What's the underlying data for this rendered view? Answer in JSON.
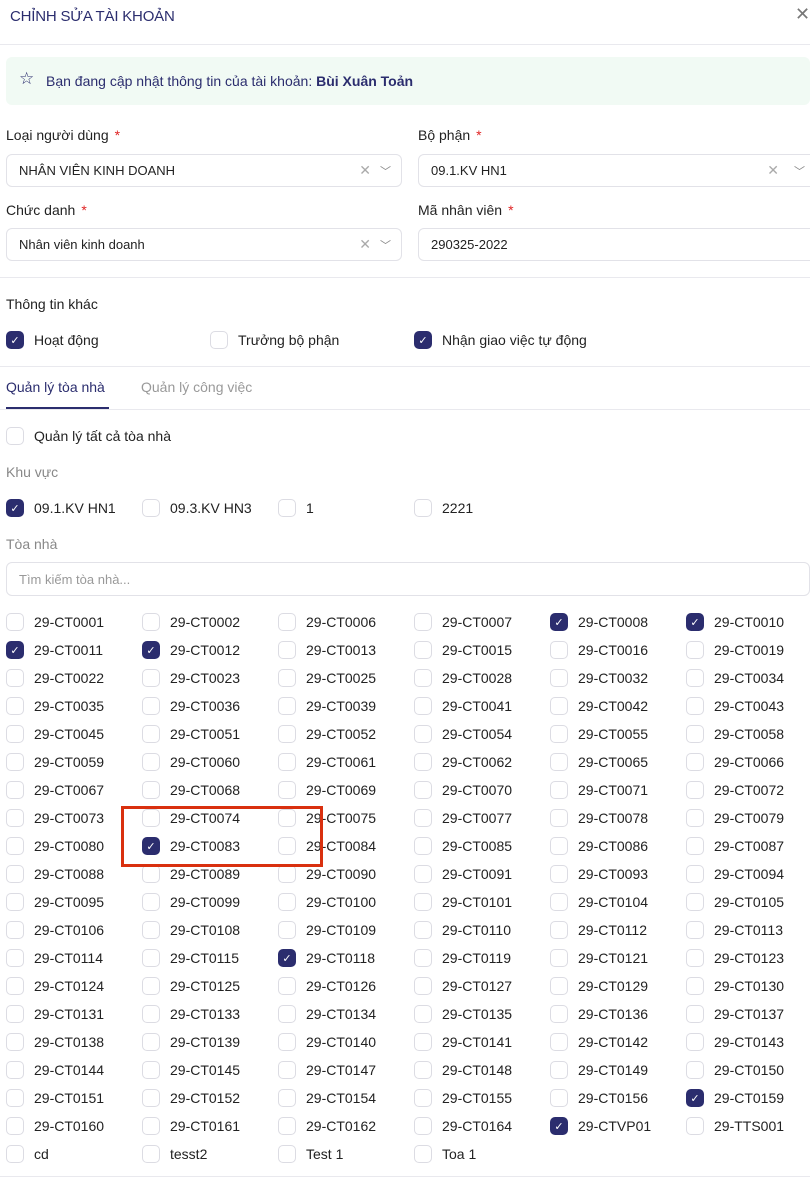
{
  "header": {
    "title": "CHỈNH SỬA TÀI KHOẢN",
    "close": "✕"
  },
  "banner": {
    "prefix": "Bạn đang cập nhật thông tin của tài khoản: ",
    "name": "Bùi Xuân Toản",
    "icon": "star-icon"
  },
  "form": {
    "user_type": {
      "label": "Loại người dùng",
      "value": "NHÂN VIÊN KINH DOANH"
    },
    "department": {
      "label": "Bộ phận",
      "value": "09.1.KV HN1"
    },
    "position": {
      "label": "Chức danh",
      "value": "Nhân viên kinh doanh"
    },
    "employee_code": {
      "label": "Mã nhân viên",
      "value": "290325-2022"
    },
    "required": "*"
  },
  "other": {
    "title": "Thông tin khác",
    "options": [
      {
        "label": "Hoạt động",
        "checked": true
      },
      {
        "label": "Trưởng bộ phận",
        "checked": false
      },
      {
        "label": "Nhận giao việc tự động",
        "checked": true
      }
    ]
  },
  "tabs": [
    {
      "label": "Quản lý tòa nhà",
      "active": true
    },
    {
      "label": "Quản lý công việc",
      "active": false
    }
  ],
  "manage_all": {
    "label": "Quản lý tất cả tòa nhà",
    "checked": false
  },
  "region": {
    "title": "Khu vực",
    "items": [
      {
        "label": "09.1.KV HN1",
        "checked": true
      },
      {
        "label": "09.3.KV HN3",
        "checked": false
      },
      {
        "label": "1",
        "checked": false
      },
      {
        "label": "2221",
        "checked": false
      }
    ]
  },
  "buildings": {
    "title": "Tòa nhà",
    "search_placeholder": "Tìm kiếm tòa nhà...",
    "checked": [
      "29-CT0008",
      "29-CT0010",
      "29-CT0011",
      "29-CT0012",
      "29-CT0083",
      "29-CT0118",
      "29-CT0159",
      "29-CTVP01"
    ],
    "items": [
      "29-CT0001",
      "29-CT0002",
      "29-CT0006",
      "29-CT0007",
      "29-CT0008",
      "29-CT0010",
      "29-CT0011",
      "29-CT0012",
      "29-CT0013",
      "29-CT0015",
      "29-CT0016",
      "29-CT0019",
      "29-CT0022",
      "29-CT0023",
      "29-CT0025",
      "29-CT0028",
      "29-CT0032",
      "29-CT0034",
      "29-CT0035",
      "29-CT0036",
      "29-CT0039",
      "29-CT0041",
      "29-CT0042",
      "29-CT0043",
      "29-CT0045",
      "29-CT0051",
      "29-CT0052",
      "29-CT0054",
      "29-CT0055",
      "29-CT0058",
      "29-CT0059",
      "29-CT0060",
      "29-CT0061",
      "29-CT0062",
      "29-CT0065",
      "29-CT0066",
      "29-CT0067",
      "29-CT0068",
      "29-CT0069",
      "29-CT0070",
      "29-CT0071",
      "29-CT0072",
      "29-CT0073",
      "29-CT0074",
      "29-CT0075",
      "29-CT0077",
      "29-CT0078",
      "29-CT0079",
      "29-CT0080",
      "29-CT0083",
      "29-CT0084",
      "29-CT0085",
      "29-CT0086",
      "29-CT0087",
      "29-CT0088",
      "29-CT0089",
      "29-CT0090",
      "29-CT0091",
      "29-CT0093",
      "29-CT0094",
      "29-CT0095",
      "29-CT0099",
      "29-CT0100",
      "29-CT0101",
      "29-CT0104",
      "29-CT0105",
      "29-CT0106",
      "29-CT0108",
      "29-CT0109",
      "29-CT0110",
      "29-CT0112",
      "29-CT0113",
      "29-CT0114",
      "29-CT0115",
      "29-CT0118",
      "29-CT0119",
      "29-CT0121",
      "29-CT0123",
      "29-CT0124",
      "29-CT0125",
      "29-CT0126",
      "29-CT0127",
      "29-CT0129",
      "29-CT0130",
      "29-CT0131",
      "29-CT0133",
      "29-CT0134",
      "29-CT0135",
      "29-CT0136",
      "29-CT0137",
      "29-CT0138",
      "29-CT0139",
      "29-CT0140",
      "29-CT0141",
      "29-CT0142",
      "29-CT0143",
      "29-CT0144",
      "29-CT0145",
      "29-CT0147",
      "29-CT0148",
      "29-CT0149",
      "29-CT0150",
      "29-CT0151",
      "29-CT0152",
      "29-CT0154",
      "29-CT0155",
      "29-CT0156",
      "29-CT0159",
      "29-CT0160",
      "29-CT0161",
      "29-CT0162",
      "29-CT0164",
      "29-CTVP01",
      "29-TTS001",
      "cd",
      "tesst2",
      "Test 1",
      "Toa 1"
    ]
  },
  "colors": {
    "primary": "#2b2d6e",
    "required": "#e02424",
    "banner_bg": "#f1faf4",
    "highlight": "#d9300f"
  }
}
